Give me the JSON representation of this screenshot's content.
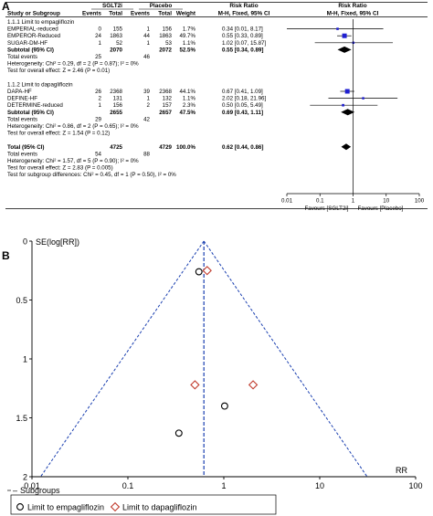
{
  "chart_data": [
    {
      "type": "forest",
      "panel_label": "A",
      "columns": {
        "study": "Study or Subgroup",
        "treatment_group": "SGLT2i",
        "control_group": "Placebo",
        "events": "Events",
        "total": "Total",
        "weight": "Weight",
        "rr_text_header": "Risk Ratio",
        "rr_text_sub": "M-H, Fixed, 95% CI",
        "plot_header": "Risk Ratio",
        "plot_sub": "M-H, Fixed, 95% CI"
      },
      "subgroups": [
        {
          "title": "1.1.1 Limit to empagliflozin",
          "studies": [
            {
              "name": "EMPERIAL-reduced",
              "t_events": "0",
              "t_total": "155",
              "c_events": "1",
              "c_total": "156",
              "weight": "1.7%",
              "ci_text": "0.34 [0.01, 8.17]",
              "rr": 0.34,
              "lo": 0.01,
              "hi": 8.17
            },
            {
              "name": "EMPEROR-Reduced",
              "t_events": "24",
              "t_total": "1863",
              "c_events": "44",
              "c_total": "1863",
              "weight": "49.7%",
              "ci_text": "0.55 [0.33, 0.89]",
              "rr": 0.55,
              "lo": 0.33,
              "hi": 0.89
            },
            {
              "name": "SUGAR-DM-HF",
              "t_events": "1",
              "t_total": "52",
              "c_events": "1",
              "c_total": "53",
              "weight": "1.1%",
              "ci_text": "1.02 [0.07, 15.87]",
              "rr": 1.02,
              "lo": 0.07,
              "hi": 15.87
            }
          ],
          "subtotal": {
            "label": "Subtotal (95% CI)",
            "t_total": "2070",
            "c_total": "2072",
            "weight": "52.5%",
            "ci_text": "0.55 [0.34, 0.89]",
            "rr": 0.55,
            "lo": 0.34,
            "hi": 0.89
          },
          "total_events": {
            "label": "Total events",
            "t": "25",
            "c": "46"
          },
          "heterogeneity": "Heterogeneity: Chi² = 0.29, df = 2 (P = 0.87); I² = 0%",
          "overall_effect": "Test for overall effect: Z = 2.46 (P = 0.01)"
        },
        {
          "title": "1.1.2 Limit to dapagliflozin",
          "studies": [
            {
              "name": "DAPA-HF",
              "t_events": "26",
              "t_total": "2368",
              "c_events": "39",
              "c_total": "2368",
              "weight": "44.1%",
              "ci_text": "0.67 [0.41, 1.09]",
              "rr": 0.67,
              "lo": 0.41,
              "hi": 1.09
            },
            {
              "name": "DEFINE-HF",
              "t_events": "2",
              "t_total": "131",
              "c_events": "1",
              "c_total": "132",
              "weight": "1.1%",
              "ci_text": "2.02 [0.18, 21.96]",
              "rr": 2.02,
              "lo": 0.18,
              "hi": 21.96
            },
            {
              "name": "DETERMINE-reduced",
              "t_events": "1",
              "t_total": "156",
              "c_events": "2",
              "c_total": "157",
              "weight": "2.3%",
              "ci_text": "0.50 [0.05, 5.49]",
              "rr": 0.5,
              "lo": 0.05,
              "hi": 5.49
            }
          ],
          "subtotal": {
            "label": "Subtotal (95% CI)",
            "t_total": "2655",
            "c_total": "2657",
            "weight": "47.5%",
            "ci_text": "0.69 [0.43, 1.11]",
            "rr": 0.69,
            "lo": 0.43,
            "hi": 1.11
          },
          "total_events": {
            "label": "Total events",
            "t": "29",
            "c": "42"
          },
          "heterogeneity": "Heterogeneity: Chi² = 0.86, df = 2 (P = 0.65); I² = 0%",
          "overall_effect": "Test for overall effect: Z = 1.54 (P = 0.12)"
        }
      ],
      "overall": {
        "label": "Total (95% CI)",
        "t_total": "4725",
        "c_total": "4729",
        "weight": "100.0%",
        "ci_text": "0.62 [0.44, 0.86]",
        "rr": 0.62,
        "lo": 0.44,
        "hi": 0.86
      },
      "overall_events": {
        "label": "Total events",
        "t": "54",
        "c": "88"
      },
      "overall_heterogeneity": "Heterogeneity: Chi² = 1.57, df = 5 (P = 0.90); I² = 0%",
      "overall_effect": "Test for overall effect: Z = 2.83 (P = 0.005)",
      "subgroup_differences": "Test for subgroup differences: Chi² = 0.45, df = 1 (P = 0.50), I² = 0%",
      "x_scale": "log",
      "x_ticks": [
        0.01,
        0.1,
        1,
        10,
        100
      ],
      "x_tick_labels": [
        "0.01",
        "0.1",
        "1",
        "10",
        "100"
      ],
      "favours_left": "Favours [SGLT2i]",
      "favours_right": "Favours [Placebo]",
      "colors": {
        "study_square": "#1f1fd1",
        "diamond": "#000000"
      }
    },
    {
      "type": "scatter",
      "panel_label": "B",
      "ylabel": "SE(log[RR])",
      "xlabel": "RR",
      "x_scale": "log",
      "x_range": [
        0.01,
        100
      ],
      "x_ticks": [
        0.01,
        0.1,
        1,
        10,
        100
      ],
      "x_tick_labels": [
        "0.01",
        "0.1",
        "1",
        "10",
        "100"
      ],
      "y_range": [
        0,
        2
      ],
      "y_inverted": true,
      "y_ticks": [
        0,
        0.5,
        1,
        1.5,
        2
      ],
      "y_tick_labels": [
        "0",
        "0.5",
        "1",
        "1.5",
        "2"
      ],
      "pooled_rr": 0.62,
      "series": [
        {
          "name": "Limit to empagliflozin",
          "marker": "circle",
          "color": "#000000",
          "points": [
            {
              "x": 0.55,
              "y": 0.26
            },
            {
              "x": 1.02,
              "y": 1.4
            },
            {
              "x": 0.34,
              "y": 1.63
            }
          ]
        },
        {
          "name": "Limit to dapagliflozin",
          "marker": "diamond",
          "color": "#c0392b",
          "points": [
            {
              "x": 0.67,
              "y": 0.25
            },
            {
              "x": 0.5,
              "y": 1.22
            },
            {
              "x": 2.02,
              "y": 1.22
            }
          ]
        }
      ],
      "legend_title": "Subgroups",
      "legend_position": "bottom"
    }
  ]
}
